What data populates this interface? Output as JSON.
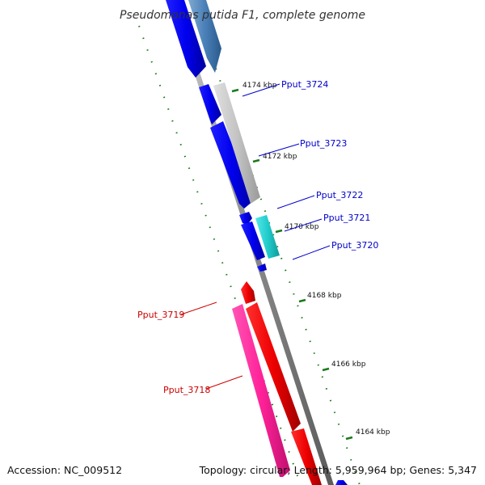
{
  "title": "Pseudomonas putida F1, complete genome",
  "footer": {
    "accession": "Accession: NC_009512",
    "summary": "Topology: circular; Length: 5,959,964 bp; Genes: 5,347"
  },
  "scale_labels": [
    "4174 kbp",
    "4172 kbp",
    "4170 kbp",
    "4168 kbp",
    "4166 kbp",
    "4164 kbp"
  ],
  "genes": [
    {
      "name": "Pput_3724",
      "label_color": "#0000cc",
      "strand": "forward",
      "fill": "#999999"
    },
    {
      "name": "Pput_3723",
      "label_color": "#0000cc",
      "strand": "forward",
      "fill": "#bbbbbb"
    },
    {
      "name": "Pput_3722",
      "label_color": "#0000cc",
      "strand": "reverse",
      "fill": "#0000ee"
    },
    {
      "name": "Pput_3721",
      "label_color": "#0000cc",
      "strand": "forward",
      "fill": "#22cccc"
    },
    {
      "name": "Pput_3720",
      "label_color": "#0000cc",
      "strand": "reverse",
      "fill": "#0000ee"
    },
    {
      "name": "Pput_3719",
      "label_color": "#cc0000",
      "strand": "forward",
      "fill": "#ee0000"
    },
    {
      "name": "Pput_3718",
      "label_color": "#cc0000",
      "strand": "reverse",
      "fill": "#ff2299"
    }
  ],
  "colors": {
    "backbone": "#888888",
    "gc_skew": "#1a7a1a",
    "forward_cds": "#0000ee",
    "reverse_cds": "#ee0000"
  }
}
